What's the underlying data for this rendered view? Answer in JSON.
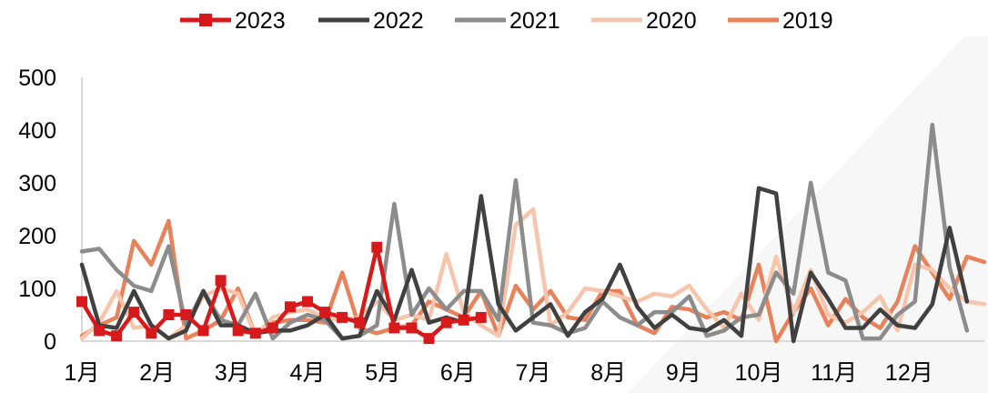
{
  "chart_data": {
    "type": "line",
    "title": "",
    "xlabel": "",
    "ylabel": "",
    "ylim": [
      0,
      500
    ],
    "yticks": [
      0,
      100,
      200,
      300,
      400,
      500
    ],
    "xlim": [
      0,
      52
    ],
    "month_labels": [
      "1月",
      "2月",
      "3月",
      "4月",
      "5月",
      "6月",
      "7月",
      "8月",
      "9月",
      "10月",
      "11月",
      "12月"
    ],
    "legend_position": "top",
    "grid": false,
    "series": [
      {
        "name": "2023",
        "color": "#d7191c",
        "marker": "square",
        "x": [
          0,
          1,
          2,
          3,
          4,
          5,
          6,
          7,
          8,
          9,
          10,
          11,
          12,
          13,
          14,
          15,
          16,
          17,
          18,
          19,
          20,
          21,
          22,
          23
        ],
        "y": [
          75,
          20,
          10,
          55,
          15,
          50,
          50,
          20,
          115,
          20,
          15,
          25,
          65,
          75,
          55,
          45,
          35,
          178,
          25,
          25,
          5,
          35,
          40,
          45
        ]
      },
      {
        "name": "2022",
        "color": "#404040",
        "marker": "none",
        "x": [
          0,
          1,
          2,
          3,
          4,
          5,
          6,
          7,
          8,
          9,
          10,
          11,
          12,
          13,
          14,
          15,
          16,
          17,
          18,
          19,
          20,
          21,
          22,
          23,
          24,
          25,
          26,
          27,
          28,
          29,
          30,
          31,
          32,
          33,
          34,
          35,
          36,
          37,
          38,
          39,
          40,
          41,
          42,
          43,
          44,
          45,
          46,
          47,
          48,
          49,
          50,
          51
        ],
        "y": [
          145,
          30,
          25,
          95,
          30,
          5,
          20,
          95,
          30,
          30,
          15,
          20,
          20,
          30,
          50,
          5,
          10,
          95,
          40,
          135,
          35,
          45,
          35,
          275,
          70,
          20,
          45,
          70,
          10,
          55,
          80,
          145,
          65,
          25,
          50,
          25,
          20,
          40,
          10,
          290,
          280,
          0,
          130,
          80,
          25,
          25,
          60,
          30,
          25,
          70,
          215,
          75
        ]
      },
      {
        "name": "2021",
        "color": "#8c8c8c",
        "marker": "none",
        "x": [
          0,
          1,
          2,
          3,
          4,
          5,
          6,
          7,
          8,
          9,
          10,
          11,
          12,
          13,
          14,
          15,
          16,
          17,
          18,
          19,
          20,
          21,
          22,
          23,
          24,
          25,
          26,
          27,
          28,
          29,
          30,
          31,
          32,
          33,
          34,
          35,
          36,
          37,
          38,
          39,
          40,
          41,
          42,
          43,
          44,
          45,
          46,
          47,
          48,
          49,
          50,
          51
        ],
        "y": [
          170,
          175,
          135,
          105,
          95,
          180,
          30,
          95,
          40,
          30,
          90,
          5,
          35,
          50,
          40,
          5,
          10,
          30,
          260,
          50,
          100,
          60,
          95,
          95,
          40,
          305,
          35,
          30,
          15,
          25,
          75,
          45,
          30,
          55,
          55,
          85,
          10,
          20,
          45,
          50,
          130,
          90,
          300,
          130,
          115,
          5,
          5,
          50,
          75,
          410,
          140,
          20
        ]
      },
      {
        "name": "2020",
        "color": "#f6c5ac",
        "marker": "none",
        "x": [
          0,
          1,
          2,
          3,
          4,
          5,
          6,
          7,
          8,
          9,
          10,
          11,
          12,
          13,
          14,
          15,
          16,
          17,
          18,
          19,
          20,
          21,
          22,
          23,
          24,
          25,
          26,
          27,
          28,
          29,
          30,
          31,
          32,
          33,
          34,
          35,
          36,
          37,
          38,
          39,
          40,
          41,
          42,
          43,
          44,
          45,
          46,
          47,
          48,
          49,
          50,
          51,
          52
        ],
        "y": [
          5,
          35,
          95,
          25,
          30,
          5,
          30,
          85,
          100,
          90,
          10,
          45,
          55,
          60,
          45,
          40,
          45,
          75,
          40,
          50,
          40,
          165,
          55,
          30,
          10,
          220,
          250,
          30,
          55,
          100,
          95,
          85,
          75,
          90,
          85,
          105,
          60,
          25,
          90,
          40,
          160,
          55,
          135,
          50,
          35,
          55,
          85,
          20,
          145,
          135,
          100,
          75,
          70
        ]
      },
      {
        "name": "2019",
        "color": "#e8825a",
        "marker": "none",
        "x": [
          0,
          1,
          2,
          3,
          4,
          5,
          6,
          7,
          8,
          9,
          10,
          11,
          12,
          13,
          14,
          15,
          16,
          17,
          18,
          19,
          20,
          21,
          22,
          23,
          24,
          25,
          26,
          27,
          28,
          29,
          30,
          31,
          32,
          33,
          34,
          35,
          36,
          37,
          38,
          39,
          40,
          41,
          42,
          43,
          44,
          45,
          46,
          47,
          48,
          49,
          50,
          51,
          52
        ],
        "y": [
          10,
          30,
          45,
          190,
          145,
          228,
          5,
          20,
          40,
          100,
          10,
          35,
          40,
          40,
          35,
          130,
          25,
          15,
          25,
          30,
          75,
          60,
          45,
          95,
          10,
          105,
          60,
          95,
          45,
          40,
          95,
          95,
          30,
          15,
          65,
          60,
          45,
          55,
          40,
          145,
          0,
          55,
          100,
          30,
          80,
          45,
          25,
          75,
          180,
          130,
          80,
          160,
          150
        ]
      }
    ]
  }
}
